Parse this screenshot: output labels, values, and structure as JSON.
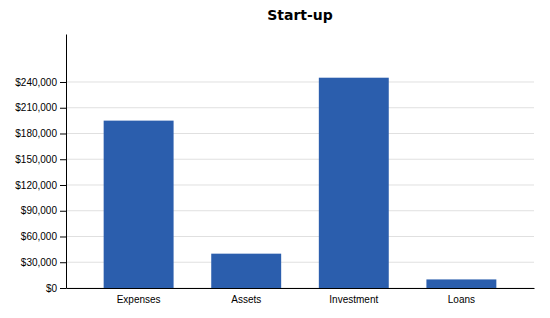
{
  "chart_data": {
    "type": "bar",
    "title": "Start-up",
    "categories": [
      "Expenses",
      "Assets",
      "Investment",
      "Loans"
    ],
    "values": [
      195000,
      40000,
      245000,
      10000
    ],
    "color": "#2B5EAD",
    "ylim": [
      0,
      295920
    ],
    "yticks": [
      {
        "value": 0,
        "label": "$0"
      },
      {
        "value": 30000,
        "label": "$30,000"
      },
      {
        "value": 60000,
        "label": "$60,000"
      },
      {
        "value": 90000,
        "label": "$90,000"
      },
      {
        "value": 120000,
        "label": "$120,000"
      },
      {
        "value": 150000,
        "label": "$150,000"
      },
      {
        "value": 180000,
        "label": "$180,000"
      },
      {
        "value": 210000,
        "label": "$210,000"
      },
      {
        "value": 240000,
        "label": "$240,000"
      }
    ],
    "grid": true
  }
}
